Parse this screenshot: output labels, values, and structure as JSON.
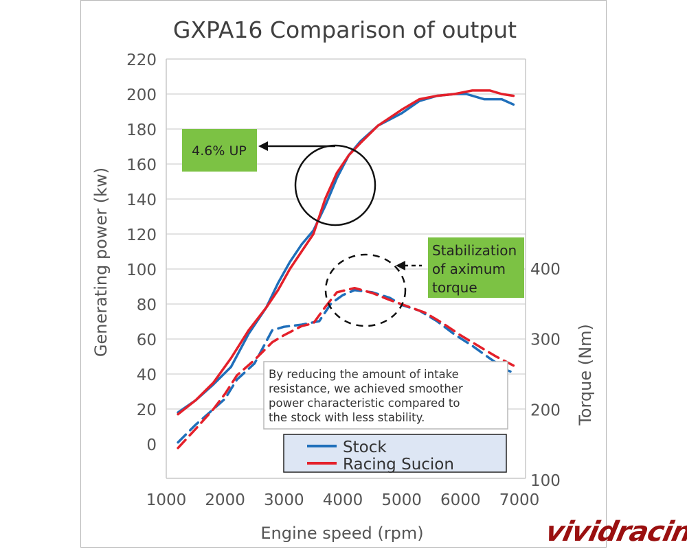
{
  "chart_data": {
    "type": "line",
    "title": "GXPA16 Comparison of output",
    "xlabel": "Engine speed (rpm)",
    "ylabel": "Generating power (kw)",
    "y2label": "Torque (Nm)",
    "xlim": [
      1000,
      7000
    ],
    "ylim": [
      -20,
      220
    ],
    "y2lim": [
      100,
      430
    ],
    "x_ticks": [
      "1000",
      "2000",
      "3000",
      "4000",
      "5000",
      "6000",
      "7000"
    ],
    "y_ticks": [
      "0",
      "20",
      "40",
      "60",
      "80",
      "100",
      "120",
      "140",
      "160",
      "180",
      "200",
      "220"
    ],
    "y2_ticks": [
      "100",
      "200",
      "300",
      "400"
    ],
    "series": [
      {
        "name": "Stock",
        "axis": "power",
        "color": "#1f6fba",
        "dash": false,
        "points": [
          [
            1200,
            18
          ],
          [
            1500,
            25
          ],
          [
            1800,
            34
          ],
          [
            2100,
            44
          ],
          [
            2400,
            63
          ],
          [
            2700,
            78
          ],
          [
            2900,
            92
          ],
          [
            3100,
            104
          ],
          [
            3300,
            114
          ],
          [
            3500,
            122
          ],
          [
            3700,
            136
          ],
          [
            3900,
            152
          ],
          [
            4100,
            165
          ],
          [
            4300,
            173
          ],
          [
            4600,
            182
          ],
          [
            5000,
            189
          ],
          [
            5300,
            196
          ],
          [
            5600,
            199
          ],
          [
            5900,
            200
          ],
          [
            6100,
            200
          ],
          [
            6400,
            197
          ],
          [
            6700,
            197
          ],
          [
            6900,
            194
          ]
        ]
      },
      {
        "name": "Racing Sucion",
        "axis": "power",
        "color": "#e4202a",
        "dash": false,
        "points": [
          [
            1200,
            17
          ],
          [
            1500,
            25
          ],
          [
            1800,
            35
          ],
          [
            2100,
            49
          ],
          [
            2400,
            65
          ],
          [
            2700,
            78
          ],
          [
            2900,
            88
          ],
          [
            3100,
            100
          ],
          [
            3300,
            110
          ],
          [
            3500,
            120
          ],
          [
            3700,
            140
          ],
          [
            3900,
            155
          ],
          [
            4100,
            165
          ],
          [
            4300,
            172
          ],
          [
            4600,
            182
          ],
          [
            5000,
            191
          ],
          [
            5300,
            197
          ],
          [
            5600,
            199
          ],
          [
            5900,
            200
          ],
          [
            6200,
            202
          ],
          [
            6500,
            202
          ],
          [
            6700,
            200
          ],
          [
            6900,
            199
          ]
        ]
      },
      {
        "name": "Stock torque",
        "axis": "torque",
        "color": "#1f6fba",
        "dash": true,
        "points": [
          [
            1200,
            153
          ],
          [
            1500,
            178
          ],
          [
            1800,
            200
          ],
          [
            2000,
            215
          ],
          [
            2200,
            242
          ],
          [
            2500,
            265
          ],
          [
            2800,
            312
          ],
          [
            3000,
            317
          ],
          [
            3300,
            320
          ],
          [
            3600,
            325
          ],
          [
            3800,
            350
          ],
          [
            4000,
            362
          ],
          [
            4200,
            369
          ],
          [
            4500,
            366
          ],
          [
            4800,
            358
          ],
          [
            5000,
            348
          ],
          [
            5300,
            340
          ],
          [
            5600,
            325
          ],
          [
            5900,
            306
          ],
          [
            6200,
            290
          ],
          [
            6500,
            272
          ],
          [
            6800,
            255
          ],
          [
            6900,
            252
          ]
        ]
      },
      {
        "name": "Racing Sucion torque",
        "axis": "torque",
        "color": "#e4202a",
        "dash": true,
        "points": [
          [
            1200,
            145
          ],
          [
            1500,
            172
          ],
          [
            1800,
            200
          ],
          [
            2000,
            222
          ],
          [
            2200,
            248
          ],
          [
            2500,
            270
          ],
          [
            2800,
            295
          ],
          [
            3000,
            305
          ],
          [
            3300,
            318
          ],
          [
            3500,
            322
          ],
          [
            3700,
            345
          ],
          [
            3900,
            366
          ],
          [
            4200,
            372
          ],
          [
            4500,
            365
          ],
          [
            4800,
            355
          ],
          [
            5100,
            346
          ],
          [
            5400,
            337
          ],
          [
            5700,
            322
          ],
          [
            6000,
            305
          ],
          [
            6300,
            290
          ],
          [
            6600,
            275
          ],
          [
            6900,
            262
          ]
        ]
      }
    ],
    "legend": {
      "position": "bottom-center",
      "entries": [
        "Stock",
        "Racing Sucion"
      ]
    },
    "annotations": {
      "power_gain": "4.6% UP",
      "stabilization": [
        "Stabilization",
        "of aximum",
        "torque"
      ],
      "note": [
        "By reducing the amount of intake",
        "resistance, we achieved smoother",
        "power characteristic compared to",
        "the stock with less stability."
      ]
    }
  },
  "watermark": "vividracing",
  "colors": {
    "accent_green": "#7cc244",
    "grid": "#d0d0d0",
    "legend_bg": "#dde6f4"
  }
}
